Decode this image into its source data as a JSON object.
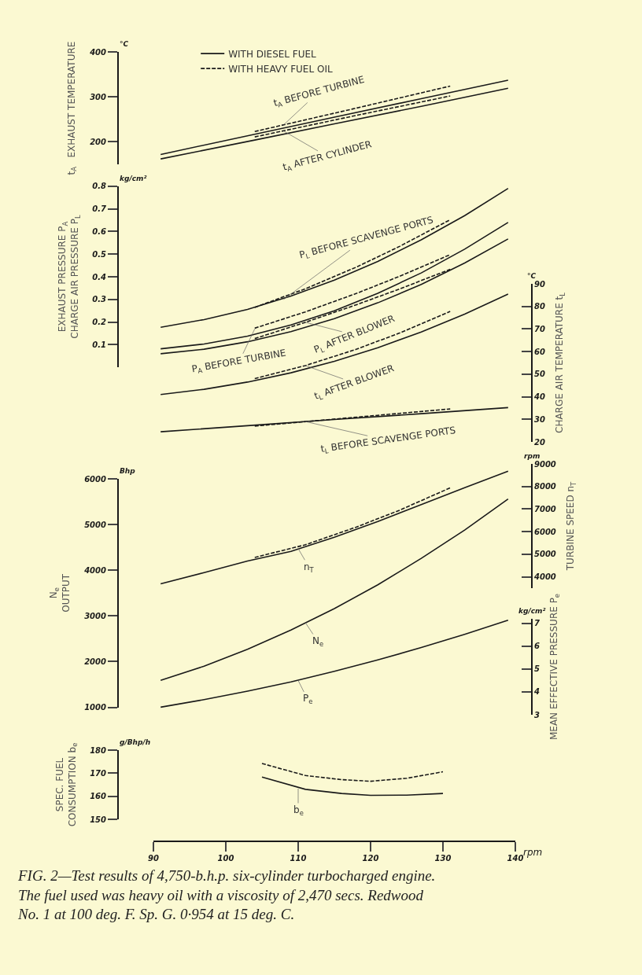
{
  "chart_data": [
    {
      "type": "line",
      "ylabel": "t$_{A}$   EXHAUST TEMPERATURE",
      "xlim": [
        90,
        140
      ],
      "xticks": [
        90,
        100,
        110,
        120,
        130,
        140
      ],
      "tick_labels": "y",
      "legend": "top left",
      "ylim": [
        150,
        400
      ],
      "yticks": [
        200,
        300,
        400
      ],
      "series": [
        {
          "name": "WITH DIESEL FUEL",
          "color": "#1a1a1a",
          "line_style": "solid",
          "x": [
            91,
            104,
            115,
            127,
            139
          ],
          "values": [
            172,
            217,
            255,
            296,
            337
          ]
        },
        {
          "name": "WITH HEAVY FUEL OIL",
          "color": "#1a1a1a",
          "line_style": "dashed",
          "x": [
            104,
            117.5,
            131
          ],
          "values": [
            223,
            273,
            324
          ]
        },
        {
          "color": "#1a1a1a",
          "line_style": "solid",
          "x": [
            91,
            104,
            115,
            127,
            139
          ],
          "values": [
            162,
            204,
            240,
            279,
            319
          ]
        },
        {
          "color": "#1a1a1a",
          "line_style": "dashed",
          "x": [
            104,
            117.5,
            131
          ],
          "values": [
            211,
            257,
            302
          ]
        }
      ],
      "annotations": [
        "°C",
        {
          "text": "t$_{A}$ BEFORE TURBINE",
          "x": 108,
          "y": 238
        },
        {
          "text": "t$_{A}$ AFTER CYLINDER",
          "x": 108,
          "y": 224
        }
      ]
    },
    {
      "type": "line",
      "ylabel": "EXHAUST PRESSURE P$_{A}$\nCHARGE AIR PRESSURE P$_{L}$",
      "xlim": [
        90,
        140
      ],
      "xticks": [
        90,
        100,
        110,
        120,
        130,
        140
      ],
      "tick_labels": "y",
      "ylim": [
        0,
        0.8
      ],
      "yticks": [
        0.1,
        0.2,
        0.3,
        0.4,
        0.5,
        0.6,
        0.7,
        0.8
      ],
      "series": [
        {
          "color": "#1a1a1a",
          "line_style": "solid",
          "x": [
            91,
            97,
            103,
            109,
            115,
            121,
            127,
            133,
            139
          ],
          "values": [
            0.177,
            0.211,
            0.256,
            0.315,
            0.385,
            0.468,
            0.563,
            0.67,
            0.79
          ]
        },
        {
          "color": "#1a1a1a",
          "line_style": "dashed",
          "x": [
            104,
            111,
            118,
            124,
            131
          ],
          "values": [
            0.265,
            0.347,
            0.442,
            0.534,
            0.652
          ]
        },
        {
          "color": "#1a1a1a",
          "line_style": "solid",
          "x": [
            91,
            97,
            103,
            109,
            115,
            121,
            127,
            133,
            139
          ],
          "values": [
            0.082,
            0.103,
            0.138,
            0.187,
            0.25,
            0.327,
            0.417,
            0.522,
            0.64
          ]
        },
        {
          "color": "#1a1a1a",
          "line_style": "dashed",
          "x": [
            104,
            111,
            118,
            124,
            131
          ],
          "values": [
            0.173,
            0.245,
            0.326,
            0.402,
            0.498
          ]
        },
        {
          "color": "#1a1a1a",
          "line_style": "solid",
          "x": [
            91,
            97,
            103,
            109,
            115,
            121,
            127,
            133,
            139
          ],
          "values": [
            0.06,
            0.08,
            0.113,
            0.158,
            0.215,
            0.285,
            0.366,
            0.461,
            0.567
          ]
        },
        {
          "color": "#1a1a1a",
          "line_style": "dashed",
          "x": [
            104,
            111,
            118,
            124,
            131
          ],
          "values": [
            0.127,
            0.199,
            0.276,
            0.346,
            0.433
          ]
        }
      ],
      "annotations": [
        "kg/cm²",
        {
          "text": "P$_{L}$ BEFORE SCAVENGE PORTS",
          "x": 108,
          "y": 0.3
        },
        {
          "text": "P$_{A}$ BEFORE TURBINE",
          "x": 104,
          "y": 0.17
        },
        {
          "text": "P$_{L}$ AFTER BLOWER",
          "x": 111,
          "y": 0.199
        }
      ]
    },
    {
      "type": "line",
      "ylabel": "CHARGE AIR TEMPERATURE t$_{L}$",
      "xlim": [
        90,
        140
      ],
      "xticks": [
        90,
        100,
        110,
        120,
        130,
        140
      ],
      "tick_labels": "y",
      "ylim": [
        20,
        90
      ],
      "yticks": [
        20,
        30,
        40,
        50,
        60,
        70,
        80,
        90
      ],
      "series": [
        {
          "color": "#1a1a1a",
          "line_style": "solid",
          "x": [
            91,
            97,
            103,
            109,
            115,
            121,
            127,
            133,
            139
          ],
          "values": [
            41,
            43.3,
            46.5,
            50.6,
            55.7,
            61.7,
            68.7,
            76.6,
            85.5
          ]
        },
        {
          "color": "#1a1a1a",
          "line_style": "dashed",
          "x": [
            104,
            111,
            118,
            124,
            131
          ],
          "values": [
            48,
            53.8,
            61,
            68.2,
            77.8
          ]
        },
        {
          "color": "#1a1a1a",
          "line_style": "solid",
          "x": [
            91,
            103,
            115,
            127,
            139
          ],
          "values": [
            24.5,
            27.2,
            29.9,
            32.5,
            35.2
          ]
        },
        {
          "color": "#1a1a1a",
          "line_style": "dashed",
          "x": [
            104,
            117.5,
            131
          ],
          "values": [
            27,
            30.8,
            34.6
          ]
        }
      ],
      "annotations": [
        "°C",
        {
          "text": "t$_{L}$ AFTER BLOWER",
          "x": 111,
          "y": 53.8
        },
        {
          "text": "t$_{L}$ BEFORE SCAVENGE PORTS",
          "x": 111,
          "y": 29
        }
      ]
    },
    {
      "type": "line",
      "ylabel": "N$_{e}$\nOUTPUT",
      "xlim": [
        90,
        140
      ],
      "xticks": [
        90,
        100,
        110,
        120,
        130,
        140
      ],
      "tick_labels": "y",
      "ylim": [
        1000,
        6000
      ],
      "yticks": [
        1000,
        2000,
        3000,
        4000,
        5000,
        6000
      ],
      "series": [
        {
          "color": "#1a1a1a",
          "line_style": "solid",
          "x": [
            91,
            97,
            103,
            109,
            115,
            121,
            127,
            133,
            139
          ],
          "values": [
            1590,
            1900,
            2270,
            2690,
            3160,
            3680,
            4260,
            4880,
            5560
          ]
        }
      ],
      "annotations": [
        "Bhp",
        {
          "text": "N$_{e}$",
          "x": 111,
          "y": 2850
        }
      ]
    },
    {
      "type": "line",
      "ylabel": "TURBINE SPEED n$_{T}$",
      "xlim": [
        90,
        140
      ],
      "xticks": [
        90,
        100,
        110,
        120,
        130,
        140
      ],
      "tick_labels": "y",
      "ylim": [
        3500,
        9000
      ],
      "yticks": [
        4000,
        5000,
        6000,
        7000,
        8000,
        9000
      ],
      "series": [
        {
          "color": "#1a1a1a",
          "line_style": "solid",
          "x": [
            91,
            97,
            103,
            109,
            115,
            121,
            127,
            133,
            139
          ],
          "values": [
            3690,
            4190,
            4700,
            5130,
            5750,
            6450,
            7200,
            7950,
            8680
          ]
        },
        {
          "color": "#1a1a1a",
          "line_style": "dashed",
          "x": [
            104,
            111,
            118,
            124,
            131
          ],
          "values": [
            4860,
            5420,
            6200,
            6950,
            7940
          ]
        }
      ],
      "annotations": [
        "rpm",
        {
          "text": "n$_{T}$",
          "x": 110,
          "y": 5250
        }
      ]
    },
    {
      "type": "line",
      "ylabel": "MEAN EFFECTIVE PRESSURE P$_{e}$",
      "xlim": [
        90,
        140
      ],
      "xticks": [
        90,
        100,
        110,
        120,
        130,
        140
      ],
      "tick_labels": "y",
      "ylim": [
        3,
        7.2
      ],
      "yticks": [
        3,
        4,
        5,
        6,
        7
      ],
      "series": [
        {
          "color": "#1a1a1a",
          "line_style": "solid",
          "x": [
            91,
            97,
            103,
            109,
            115,
            121,
            127,
            133,
            139
          ],
          "values": [
            3.33,
            3.66,
            4.03,
            4.44,
            4.9,
            5.4,
            5.94,
            6.52,
            7.14
          ]
        }
      ],
      "annotations": [
        "kg/cm²",
        {
          "text": "P$_{e}$",
          "x": 110,
          "y": 4.5
        }
      ]
    },
    {
      "type": "line",
      "ylabel": "SPEC. FUEL\nCONSUMPTION b$_{e}$",
      "xlabel": "rpm",
      "xlim": [
        90,
        140
      ],
      "xticks": [
        90,
        100,
        110,
        120,
        130,
        140
      ],
      "ylim": [
        150,
        180
      ],
      "yticks": [
        150,
        160,
        170,
        180
      ],
      "series": [
        {
          "color": "#1a1a1a",
          "line_style": "solid",
          "x": [
            105,
            111,
            116,
            120,
            125,
            130
          ],
          "values": [
            168.3,
            163,
            161.2,
            160.4,
            160.5,
            161.2
          ]
        },
        {
          "color": "#1a1a1a",
          "line_style": "dashed",
          "x": [
            105,
            111,
            116,
            120,
            125,
            130
          ],
          "values": [
            174.2,
            169,
            167.2,
            166.5,
            167.8,
            170.6
          ]
        }
      ],
      "annotations": [
        "g/Bhp/h",
        "FIG. 2—Test results of 4,750-b.h.p. six-cylinder turbocharged engine. The fuel used was heavy oil with a viscosity of 2,470 secs. Redwood No. 1 at 100 deg. F. Sp. G. 0·954 at 15 deg. C.",
        {
          "text": "b$_{e}$",
          "x": 110,
          "y": 163.3
        }
      ]
    }
  ]
}
